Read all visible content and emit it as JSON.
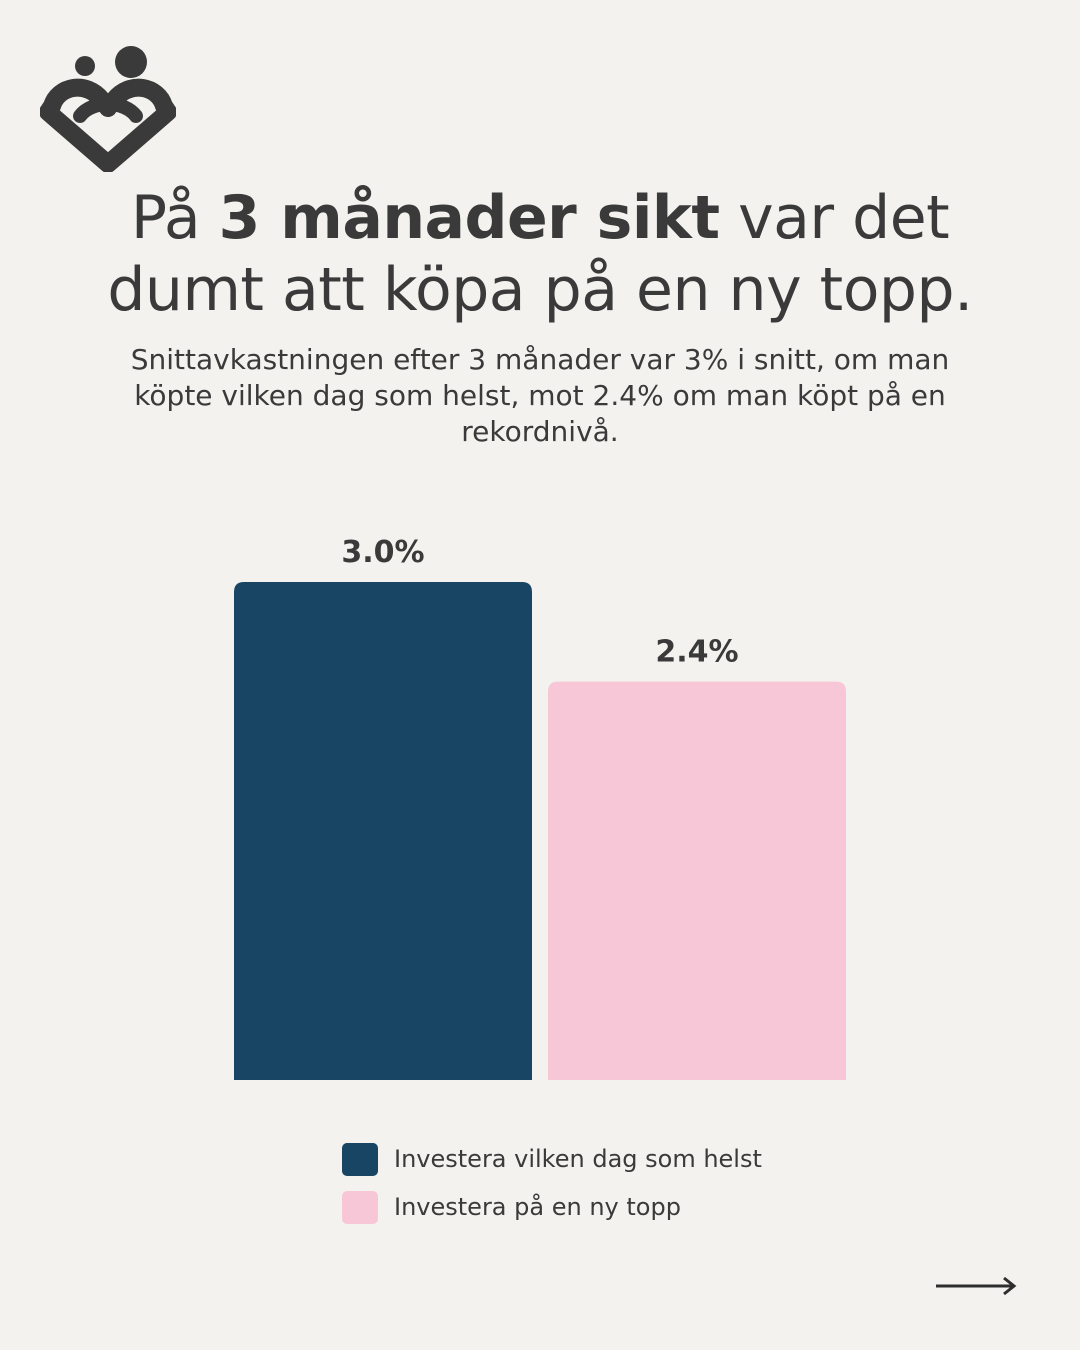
{
  "header": {
    "logo_icon": "heart-people-logo-icon",
    "title_pre": "På ",
    "title_bold": "3 månader sikt",
    "title_post": " var det dumt att köpa på en ny topp.",
    "subtitle": "Snittavkastningen efter 3 månader var 3% i snitt, om man köpte vilken dag som helst, mot 2.4% om man köpt på en rekordnivå."
  },
  "chart_data": {
    "type": "bar",
    "title": "",
    "xlabel": "",
    "ylabel": "",
    "categories": [
      "Investera vilken dag som helst",
      "Investera på en ny topp"
    ],
    "values": [
      3.0,
      2.4
    ],
    "value_labels": [
      "3.0%",
      "2.4%"
    ],
    "colors": [
      "#174563",
      "#f7c7d8"
    ],
    "ylim": [
      0,
      3.0
    ],
    "grid": false,
    "legend_position": "bottom"
  },
  "footer": {
    "arrow_icon": "arrow-right-icon"
  }
}
